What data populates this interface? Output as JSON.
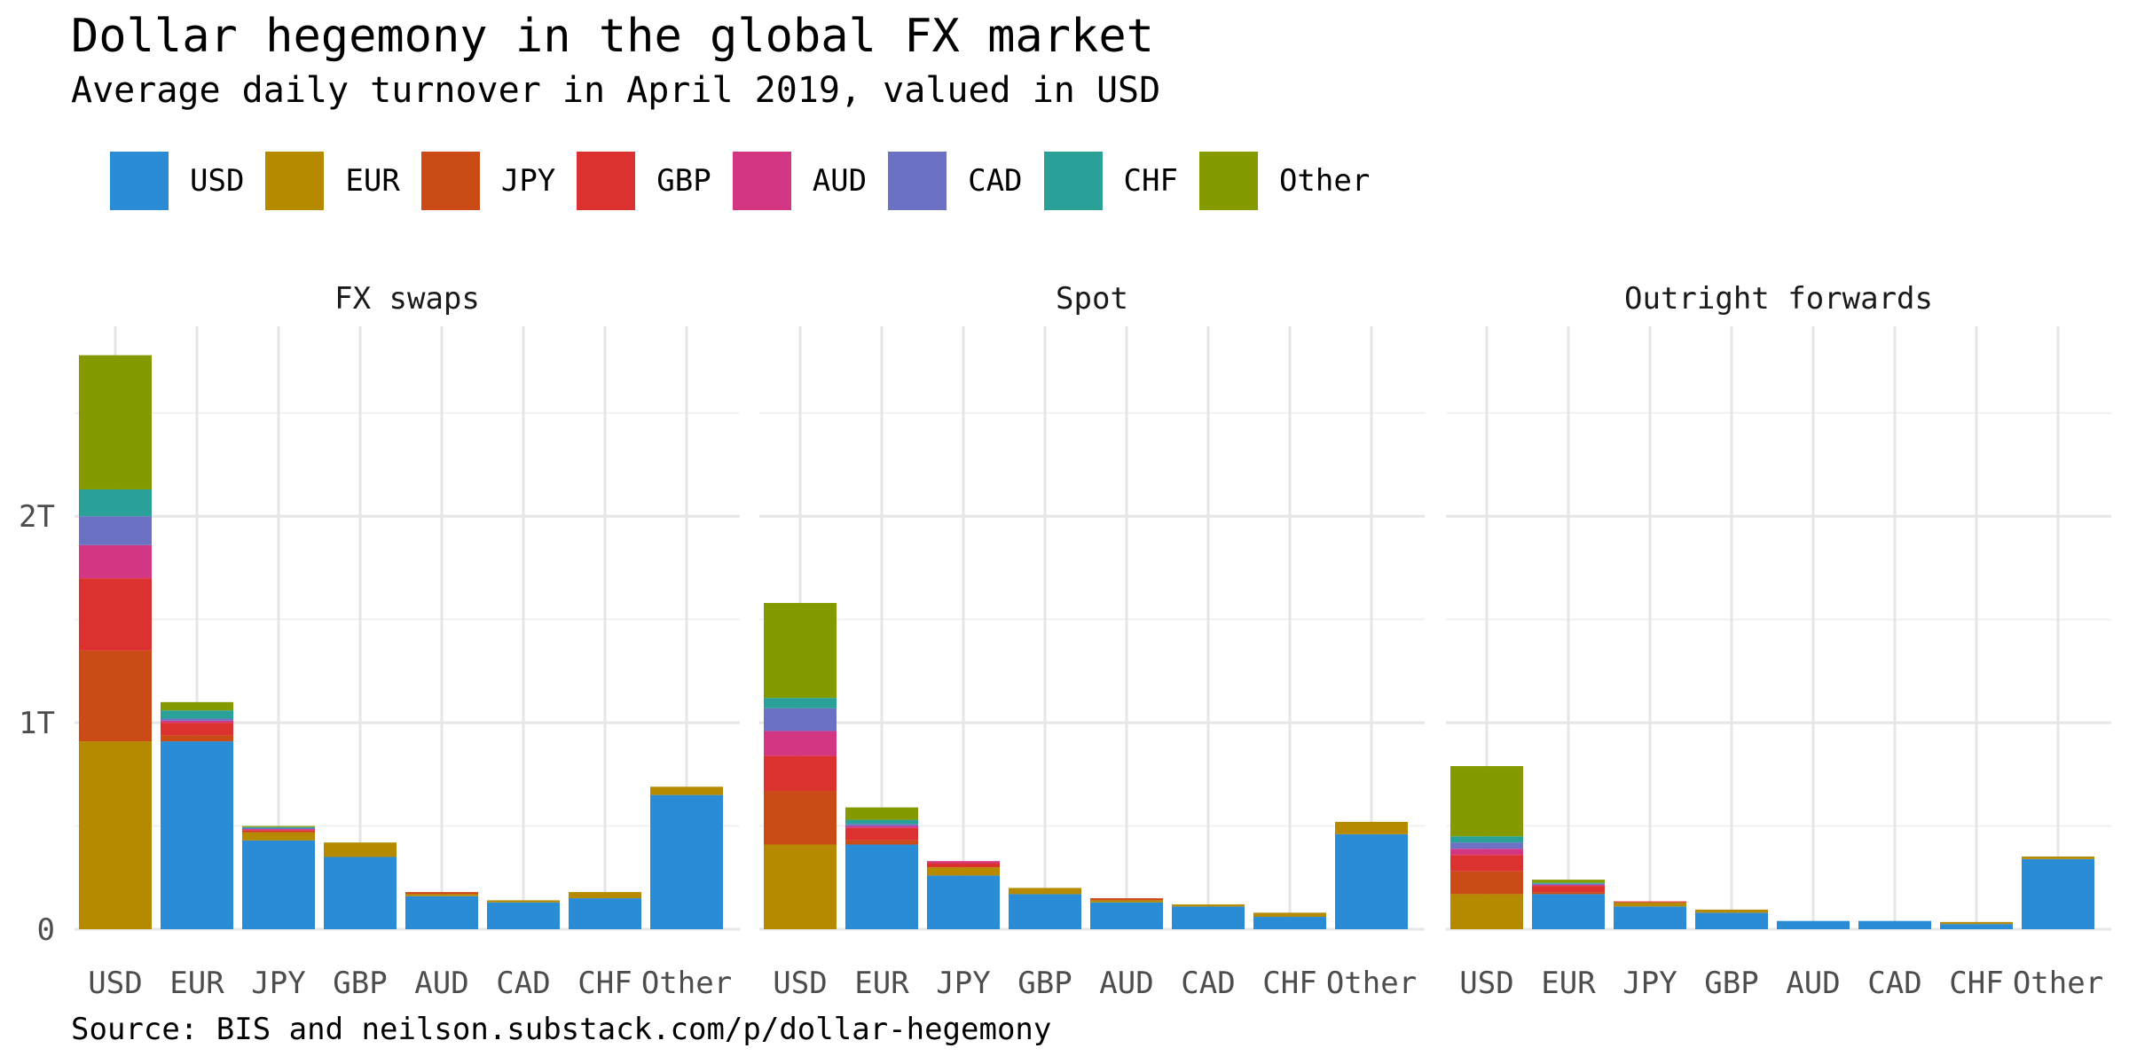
{
  "title": "Dollar hegemony in the global FX market",
  "subtitle": "Average daily turnover in April 2019, valued in USD",
  "source": "Source: BIS and neilson.substack.com/p/dollar-hegemony",
  "legend": [
    {
      "name": "USD",
      "color": "#2B8CD6"
    },
    {
      "name": "EUR",
      "color": "#B58900"
    },
    {
      "name": "JPY",
      "color": "#CB4B16"
    },
    {
      "name": "GBP",
      "color": "#DC322F"
    },
    {
      "name": "AUD",
      "color": "#D33682"
    },
    {
      "name": "CAD",
      "color": "#6C71C4"
    },
    {
      "name": "CHF",
      "color": "#2AA198"
    },
    {
      "name": "Other",
      "color": "#859900"
    }
  ],
  "chart_data": {
    "type": "bar",
    "stacked": true,
    "facets": [
      "FX swaps",
      "Spot",
      "Outright forwards"
    ],
    "categories": [
      "USD",
      "EUR",
      "JPY",
      "GBP",
      "AUD",
      "CAD",
      "CHF",
      "Other"
    ],
    "stack_order": [
      "USD",
      "EUR",
      "JPY",
      "GBP",
      "AUD",
      "CAD",
      "CHF",
      "Other"
    ],
    "y_ticks": [
      {
        "value": 0,
        "label": "0"
      },
      {
        "value": 1,
        "label": "1T"
      },
      {
        "value": 2,
        "label": "2T"
      }
    ],
    "ylim": [
      0,
      2.92
    ],
    "grid": true,
    "legend_position": "top-left",
    "panels": [
      {
        "name": "FX swaps",
        "bars": {
          "USD": {
            "EUR": 0.91,
            "JPY": 0.44,
            "GBP": 0.35,
            "AUD": 0.16,
            "CAD": 0.14,
            "CHF": 0.13,
            "Other": 0.65
          },
          "EUR": {
            "USD": 0.91,
            "JPY": 0.03,
            "GBP": 0.06,
            "AUD": 0.01,
            "CAD": 0.01,
            "CHF": 0.04,
            "Other": 0.04
          },
          "JPY": {
            "USD": 0.43,
            "EUR": 0.04,
            "GBP": 0.01,
            "AUD": 0.005,
            "CAD": 0.005,
            "CHF": 0.005,
            "Other": 0.005
          },
          "GBP": {
            "USD": 0.35,
            "EUR": 0.07
          },
          "AUD": {
            "USD": 0.16,
            "EUR": 0.01,
            "JPY": 0.01
          },
          "CAD": {
            "USD": 0.13,
            "EUR": 0.01
          },
          "CHF": {
            "USD": 0.15,
            "EUR": 0.03
          },
          "Other": {
            "USD": 0.65,
            "EUR": 0.04
          }
        }
      },
      {
        "name": "Spot",
        "bars": {
          "USD": {
            "EUR": 0.41,
            "JPY": 0.26,
            "GBP": 0.17,
            "AUD": 0.12,
            "CAD": 0.11,
            "CHF": 0.05,
            "Other": 0.46
          },
          "EUR": {
            "USD": 0.41,
            "JPY": 0.02,
            "GBP": 0.06,
            "AUD": 0.01,
            "CAD": 0.01,
            "CHF": 0.02,
            "Other": 0.06
          },
          "JPY": {
            "USD": 0.26,
            "EUR": 0.04,
            "GBP": 0.02,
            "AUD": 0.01
          },
          "GBP": {
            "USD": 0.17,
            "EUR": 0.03
          },
          "AUD": {
            "USD": 0.13,
            "EUR": 0.01,
            "JPY": 0.01
          },
          "CAD": {
            "USD": 0.11,
            "EUR": 0.01
          },
          "CHF": {
            "USD": 0.06,
            "EUR": 0.02
          },
          "Other": {
            "USD": 0.46,
            "EUR": 0.06
          }
        }
      },
      {
        "name": "Outright forwards",
        "bars": {
          "USD": {
            "EUR": 0.17,
            "JPY": 0.11,
            "GBP": 0.08,
            "AUD": 0.03,
            "CAD": 0.03,
            "CHF": 0.03,
            "Other": 0.34
          },
          "EUR": {
            "USD": 0.17,
            "JPY": 0.01,
            "GBP": 0.03,
            "AUD": 0.005,
            "CAD": 0.005,
            "CHF": 0.005,
            "Other": 0.015
          },
          "JPY": {
            "USD": 0.11,
            "EUR": 0.02,
            "GBP": 0.005
          },
          "GBP": {
            "USD": 0.08,
            "EUR": 0.015
          },
          "AUD": {
            "USD": 0.04
          },
          "CAD": {
            "USD": 0.04
          },
          "CHF": {
            "USD": 0.025,
            "EUR": 0.01
          },
          "Other": {
            "USD": 0.34,
            "EUR": 0.012
          }
        }
      }
    ]
  }
}
